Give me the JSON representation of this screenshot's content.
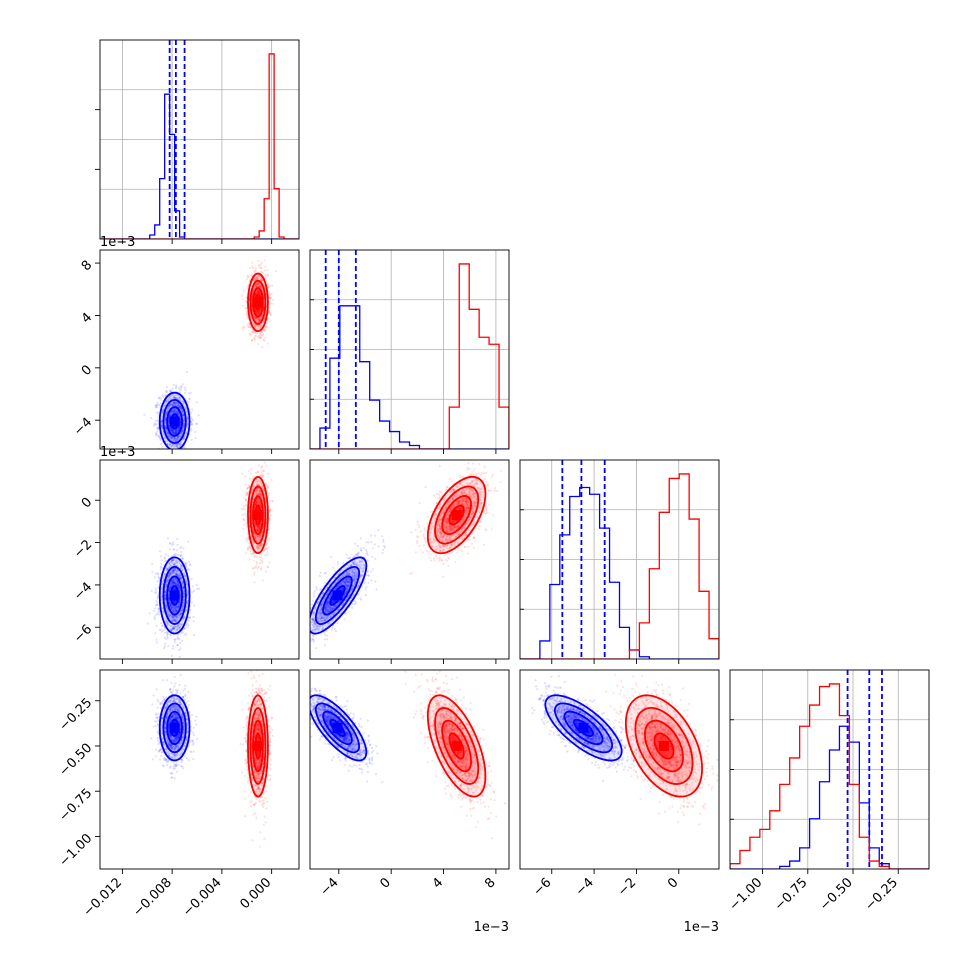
{
  "chart_data": {
    "type": "corner",
    "description_free": true,
    "colors": {
      "blue": "#0000ff",
      "red": "#ff0000",
      "grid": "#b0b0b0",
      "axis": "#000000"
    },
    "parameters": [
      {
        "ticks": [
          -0.012,
          -0.008,
          -0.004,
          0.0
        ],
        "tick_labels": [
          "−0.012",
          "−0.008",
          "−0.004",
          "0.000"
        ],
        "offset": ""
      },
      {
        "ticks": [
          -4,
          0,
          4,
          8
        ],
        "tick_labels": [
          "−4",
          "0",
          "4",
          "8"
        ],
        "offset": "1e−3"
      },
      {
        "ticks": [
          -6,
          -4,
          -2,
          0
        ],
        "tick_labels": [
          "−6",
          "−4",
          "−2",
          "0"
        ],
        "offset": "1e−3"
      },
      {
        "ticks": [
          -1.0,
          -0.75,
          -0.5,
          -0.25
        ],
        "tick_labels": [
          "−1.00",
          "−0.75",
          "−0.50",
          "−0.25"
        ],
        "offset": ""
      }
    ],
    "ranges": [
      [
        -0.0138,
        0.0022
      ],
      [
        -6.2,
        9.0
      ],
      [
        -7.5,
        1.9
      ],
      [
        -1.18,
        -0.08
      ]
    ],
    "series": [
      {
        "color": "blue",
        "means": [
          -0.0078,
          -4.1,
          -4.5,
          -0.4
        ],
        "sds": [
          0.0006,
          1.1,
          0.9,
          0.09
        ],
        "quantiles": [
          [
            -0.0082,
            -0.0077,
            -0.007
          ],
          [
            -5.0,
            -4.0,
            -2.7
          ],
          [
            -5.5,
            -4.6,
            -3.5
          ],
          [
            -0.53,
            -0.41,
            -0.34
          ]
        ],
        "hist_counts": [
          [
            0,
            0,
            0,
            0,
            0,
            0,
            0,
            0,
            0,
            0,
            2,
            7,
            30,
            72,
            52,
            14,
            1,
            0,
            0,
            0,
            0,
            0,
            0,
            0,
            0,
            0,
            0,
            0,
            0,
            0,
            0,
            0,
            0,
            0,
            0,
            0,
            0,
            0,
            0,
            0
          ],
          [
            0,
            6,
            26,
            41,
            41,
            25,
            14,
            8,
            5,
            2,
            1,
            0,
            0,
            0,
            0,
            0,
            0,
            0,
            0,
            0
          ],
          [
            0,
            0,
            8,
            33,
            55,
            72,
            76,
            73,
            58,
            34,
            14,
            4,
            1,
            0,
            0,
            0,
            0,
            0,
            0,
            0
          ],
          [
            0,
            0,
            0,
            0,
            0,
            1,
            3,
            8,
            19,
            33,
            45,
            54,
            48,
            25,
            8,
            2,
            0,
            0,
            0,
            0
          ]
        ]
      },
      {
        "color": "red",
        "means": [
          -0.0011,
          5.0,
          -0.7,
          -0.5
        ],
        "sds": [
          0.0004,
          1.1,
          0.9,
          0.14
        ],
        "quantiles": null,
        "hist_counts": [
          [
            0,
            0,
            0,
            0,
            0,
            0,
            0,
            0,
            0,
            0,
            0,
            0,
            0,
            0,
            0,
            0,
            0,
            0,
            0,
            0,
            0,
            0,
            0,
            0,
            0,
            0,
            0,
            0,
            0,
            0,
            0,
            1,
            4,
            20,
            92,
            25,
            1,
            0,
            0,
            0
          ],
          [
            0,
            0,
            0,
            0,
            0,
            0,
            0,
            0,
            0,
            0,
            0,
            0,
            0,
            0,
            12,
            53,
            40,
            32,
            30,
            12
          ],
          [
            0,
            0,
            0,
            0,
            0,
            0,
            0,
            0,
            0,
            0,
            0,
            4,
            16,
            40,
            65,
            80,
            82,
            62,
            30,
            9
          ],
          [
            2,
            7,
            12,
            15,
            22,
            32,
            42,
            54,
            62,
            69,
            70,
            58,
            32,
            12,
            3,
            1,
            0,
            0,
            0,
            0
          ]
        ]
      }
    ],
    "axes_offsets": {
      "row1_y": "1e−3",
      "row2_y": "1e−3"
    }
  }
}
